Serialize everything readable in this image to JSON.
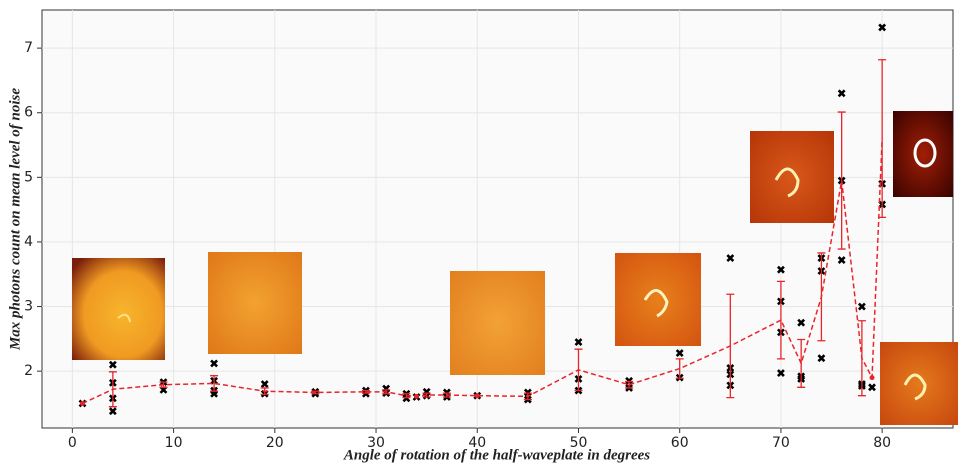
{
  "chart_data": {
    "type": "scatter",
    "xlabel": "Angle of rotation of the half-waveplate in degrees",
    "ylabel": "Max  photons count on mean level of noise",
    "xlim": [
      -3,
      87
    ],
    "ylim": [
      1.12,
      7.59
    ],
    "xticks": [
      0,
      10,
      20,
      30,
      40,
      50,
      60,
      70,
      80
    ],
    "yticks": [
      2,
      3,
      4,
      5,
      6,
      7
    ],
    "grid": true,
    "series": [
      {
        "kind": "points",
        "color": "#000000",
        "x": [
          1,
          4,
          4,
          4,
          4,
          9,
          9,
          14,
          14,
          14,
          14,
          19,
          19,
          24,
          24,
          29,
          29,
          31,
          31,
          33,
          33,
          34,
          35,
          35,
          37,
          37,
          40,
          45,
          45,
          50,
          50,
          50,
          55,
          55,
          60,
          60,
          65,
          65,
          65,
          65,
          70,
          70,
          70,
          70,
          72,
          72,
          72,
          74,
          74,
          74,
          76,
          76,
          76,
          78,
          78,
          78,
          79,
          80,
          80,
          80
        ],
        "values": [
          1.5,
          2.1,
          1.82,
          1.58,
          1.38,
          1.83,
          1.71,
          2.12,
          1.85,
          1.7,
          1.65,
          1.8,
          1.65,
          1.68,
          1.65,
          1.7,
          1.65,
          1.73,
          1.66,
          1.65,
          1.58,
          1.6,
          1.68,
          1.62,
          1.67,
          1.6,
          1.62,
          1.67,
          1.56,
          2.45,
          1.88,
          1.7,
          1.85,
          1.74,
          2.28,
          1.9,
          3.75,
          2.05,
          1.95,
          1.78,
          3.57,
          3.08,
          2.6,
          1.97,
          2.75,
          1.92,
          1.88,
          3.75,
          3.55,
          2.2,
          6.3,
          4.95,
          3.72,
          3.0,
          1.8,
          1.77,
          1.75,
          7.32,
          4.9,
          4.58
        ]
      },
      {
        "kind": "mean",
        "color": "#e8252b",
        "x": [
          1,
          4,
          9,
          14,
          19,
          24,
          29,
          31,
          33,
          34,
          35,
          37,
          40,
          45,
          50,
          55,
          60,
          65,
          70,
          72,
          74,
          76,
          78,
          79,
          80
        ],
        "values": [
          1.5,
          1.72,
          1.79,
          1.81,
          1.69,
          1.67,
          1.68,
          1.68,
          1.62,
          1.61,
          1.63,
          1.63,
          1.62,
          1.61,
          2.02,
          1.79,
          2.04,
          2.39,
          2.79,
          2.12,
          3.15,
          4.95,
          2.2,
          1.9,
          5.6
        ],
        "errors": [
          0,
          0.27,
          0.04,
          0.12,
          0.05,
          0.02,
          0.02,
          0.03,
          0.03,
          0,
          0.03,
          0.03,
          0,
          0.05,
          0.32,
          0.05,
          0.15,
          0.8,
          0.6,
          0.37,
          0.68,
          1.06,
          0.58,
          0,
          1.22
        ]
      }
    ]
  }
}
